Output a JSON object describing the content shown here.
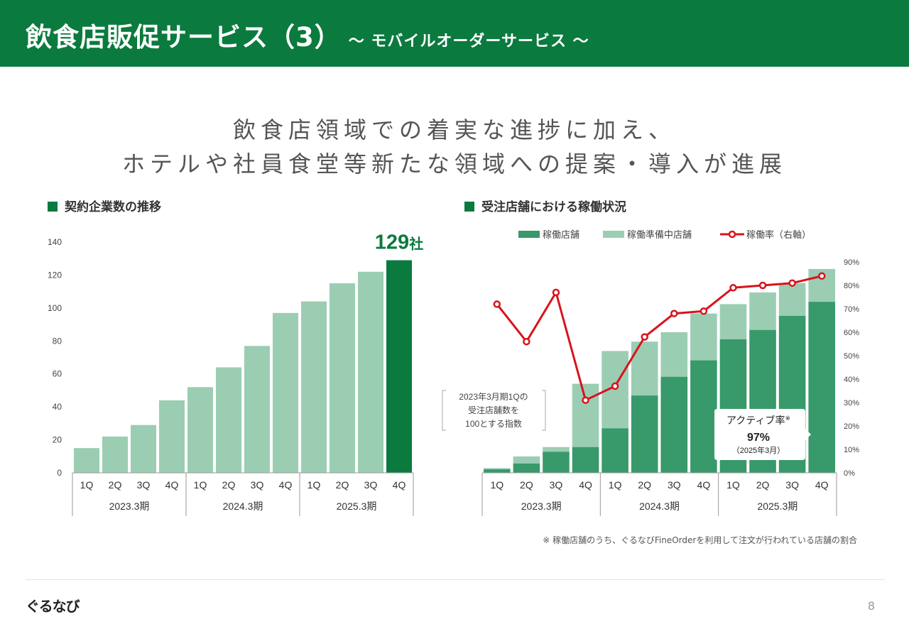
{
  "header": {
    "title": "飲食店販促サービス（3）",
    "subtitle": "～ モバイルオーダーサービス ～"
  },
  "headline": {
    "line1": "飲食店領域での着実な進捗に加え、",
    "line2": "ホテルや社員食堂等新たな領域への提案・導入が進展"
  },
  "colors": {
    "brand_green": "#0b7a3e",
    "bar_light": "#9bcdb3",
    "bar_dark": "#38996a",
    "bar_highlight": "#0b7a3e",
    "line_red": "#d7141d"
  },
  "chart_data": [
    {
      "type": "bar",
      "title": "契約企業数の推移",
      "categories": [
        "1Q",
        "2Q",
        "3Q",
        "4Q",
        "1Q",
        "2Q",
        "3Q",
        "4Q",
        "1Q",
        "2Q",
        "3Q",
        "4Q"
      ],
      "groups": [
        "2023.3期",
        "2024.3期",
        "2025.3期"
      ],
      "values": [
        15,
        22,
        29,
        44,
        52,
        64,
        77,
        97,
        104,
        115,
        122,
        129
      ],
      "ylim": [
        0,
        140
      ],
      "yticks": [
        "0",
        "20",
        "40",
        "60",
        "80",
        "100",
        "120",
        "140"
      ],
      "highlight_index": 11,
      "highlight_label": "129",
      "highlight_unit": "社",
      "grid": false
    },
    {
      "type": "bar",
      "stacked": true,
      "title": "受注店舗における稼働状況",
      "categories": [
        "1Q",
        "2Q",
        "3Q",
        "4Q",
        "1Q",
        "2Q",
        "3Q",
        "4Q",
        "1Q",
        "2Q",
        "3Q",
        "4Q"
      ],
      "groups": [
        "2023.3期",
        "2024.3期",
        "2025.3期"
      ],
      "legend_position": "top",
      "series": [
        {
          "name": "稼働店舗",
          "values": [
            1.5,
            4,
            9,
            11,
            19,
            33,
            41,
            48,
            57,
            61,
            67,
            73
          ]
        },
        {
          "name": "稼働準備中店舗",
          "values": [
            0.5,
            3,
            2,
            27,
            33,
            23,
            19,
            20,
            15,
            16,
            14,
            14
          ]
        },
        {
          "name": "稼働率（右軸）",
          "axis": "right",
          "type": "line",
          "values": [
            72,
            56,
            77,
            31,
            37,
            58,
            68,
            69,
            79,
            80,
            81,
            84
          ]
        }
      ],
      "y2_ticks": [
        "0%",
        "10%",
        "20%",
        "30%",
        "40%",
        "50%",
        "60%",
        "70%",
        "80%",
        "90%"
      ],
      "y2lim": [
        0,
        90
      ],
      "grid": false
    }
  ],
  "annotations": {
    "index_note": [
      "2023年3月期1Qの",
      "受注店舗数を",
      "100とする指数"
    ],
    "active_rate_label": "アクティブ率",
    "active_rate_mark": "※",
    "active_rate_value": "97%",
    "active_rate_date": "（2025年3月）"
  },
  "footnote": "※ 稼働店舗のうち、ぐるなびFineOrderを利用して注文が行われている店舗の割合",
  "footer": {
    "logo": "ぐるなび",
    "page": "8"
  }
}
